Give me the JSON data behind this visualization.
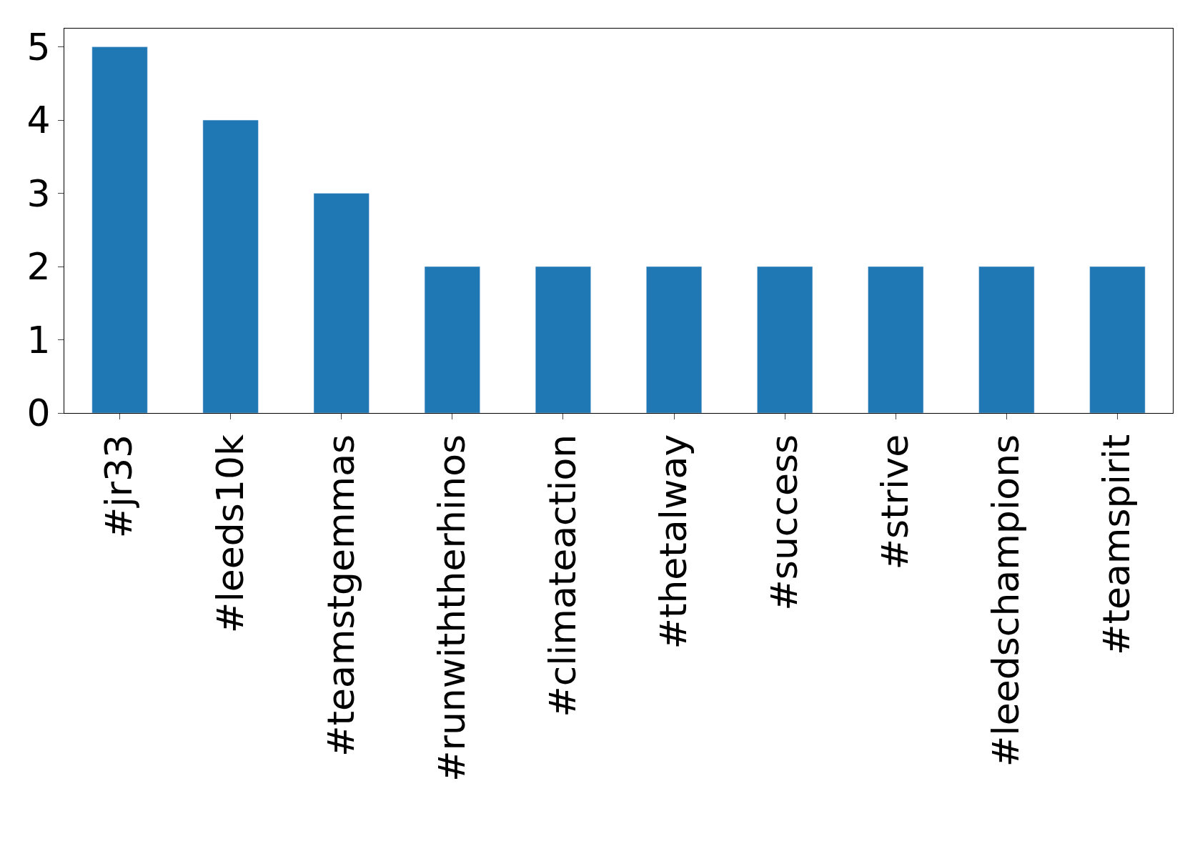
{
  "chart_data": {
    "type": "bar",
    "categories": [
      "#jr33",
      "#leeds10k",
      "#teamstgemmas",
      "#runwiththerhinos",
      "#climateaction",
      "#thetalway",
      "#success",
      "#strive",
      "#leedschampions",
      "#teamspirit"
    ],
    "values": [
      5,
      4,
      3,
      2,
      2,
      2,
      2,
      2,
      2,
      2
    ],
    "color": "#1f77b4",
    "ylim": [
      0,
      5.25
    ],
    "yticks": [
      0,
      1,
      2,
      3,
      4,
      5
    ]
  }
}
